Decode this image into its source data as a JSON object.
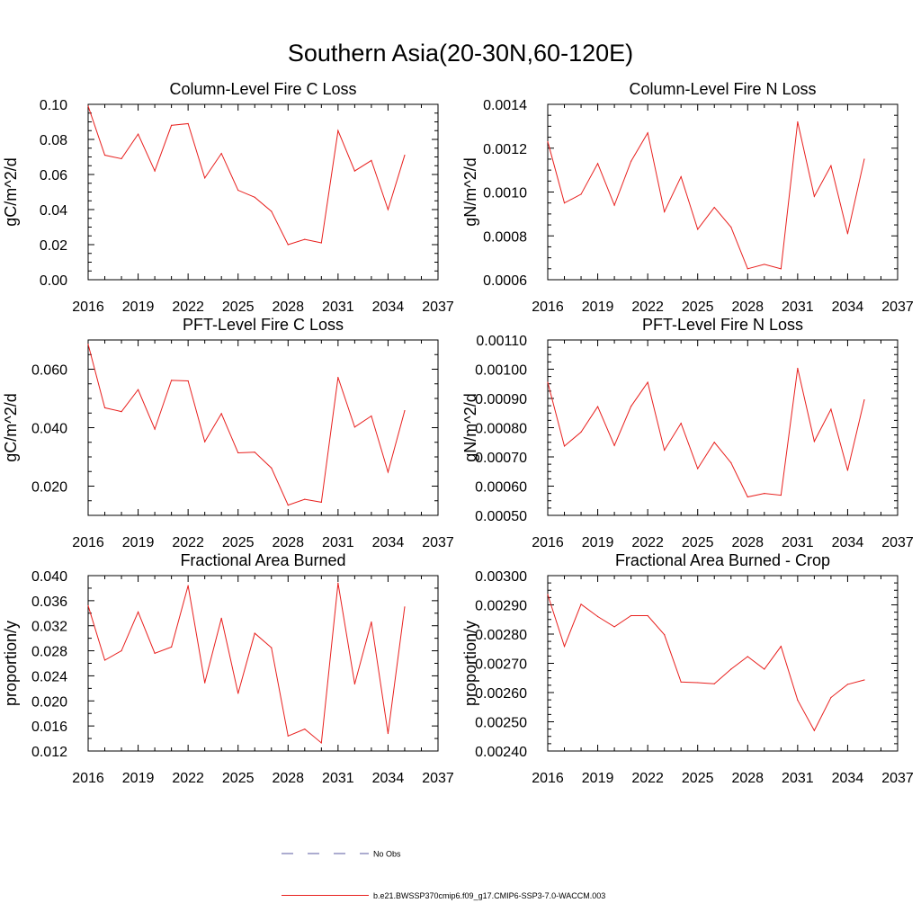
{
  "figure_title": "Southern Asia(20-30N,60-120E)",
  "legend": {
    "obs_label": "No Obs",
    "model_label": "b.e21.BWSSP370cmip6.f09_g17.CMIP6-SSP3-7.0-WACCM.003",
    "obs_color": "#5a5aa0",
    "model_color": "#e8201e"
  },
  "chart_data": [
    {
      "type": "line",
      "title": "Column-Level Fire C Loss",
      "ylabel": "gC/m^2/d",
      "xlabel": "",
      "xlim": [
        2016,
        2037
      ],
      "x_ticks": [
        "2016",
        "2019",
        "2022",
        "2025",
        "2028",
        "2031",
        "2034",
        "2037"
      ],
      "ylim": [
        0.0,
        0.1
      ],
      "y_ticks": [
        "0.00",
        "0.02",
        "0.04",
        "0.06",
        "0.08",
        "0.10"
      ],
      "series": [
        {
          "name": "b.e21.BWSSP370cmip6.f09_g17.CMIP6-SSP3-7.0-WACCM.003",
          "x": [
            2016,
            2017,
            2018,
            2019,
            2020,
            2021,
            2022,
            2023,
            2024,
            2025,
            2026,
            2027,
            2028,
            2029,
            2030,
            2031,
            2032,
            2033,
            2034,
            2035
          ],
          "values": [
            0.099,
            0.071,
            0.069,
            0.083,
            0.062,
            0.088,
            0.089,
            0.058,
            0.072,
            0.051,
            0.047,
            0.039,
            0.02,
            0.023,
            0.021,
            0.085,
            0.062,
            0.068,
            0.04,
            0.071
          ]
        }
      ]
    },
    {
      "type": "line",
      "title": "Column-Level Fire N Loss",
      "ylabel": "gN/m^2/d",
      "xlabel": "",
      "xlim": [
        2016,
        2037
      ],
      "x_ticks": [
        "2016",
        "2019",
        "2022",
        "2025",
        "2028",
        "2031",
        "2034",
        "2037"
      ],
      "ylim": [
        0.0006,
        0.0014
      ],
      "y_ticks": [
        "0.0006",
        "0.0008",
        "0.0010",
        "0.0012",
        "0.0014"
      ],
      "series": [
        {
          "name": "b.e21.BWSSP370cmip6.f09_g17.CMIP6-SSP3-7.0-WACCM.003",
          "x": [
            2016,
            2017,
            2018,
            2019,
            2020,
            2021,
            2022,
            2023,
            2024,
            2025,
            2026,
            2027,
            2028,
            2029,
            2030,
            2031,
            2032,
            2033,
            2034,
            2035
          ],
          "values": [
            0.00123,
            0.00095,
            0.00099,
            0.00113,
            0.00094,
            0.00114,
            0.00127,
            0.00091,
            0.00107,
            0.00083,
            0.00093,
            0.00084,
            0.00065,
            0.00067,
            0.00065,
            0.00132,
            0.00098,
            0.00112,
            0.00081,
            0.00115
          ]
        }
      ]
    },
    {
      "type": "line",
      "title": "PFT-Level Fire C Loss",
      "ylabel": "gC/m^2/d",
      "xlabel": "",
      "xlim": [
        2016,
        2037
      ],
      "x_ticks": [
        "2016",
        "2019",
        "2022",
        "2025",
        "2028",
        "2031",
        "2034",
        "2037"
      ],
      "ylim": [
        0.01,
        0.07
      ],
      "y_ticks": [
        "0.020",
        "0.040",
        "0.060"
      ],
      "series": [
        {
          "name": "b.e21.BWSSP370cmip6.f09_g17.CMIP6-SSP3-7.0-WACCM.003",
          "x": [
            2016,
            2017,
            2018,
            2019,
            2020,
            2021,
            2022,
            2023,
            2024,
            2025,
            2026,
            2027,
            2028,
            2029,
            2030,
            2031,
            2032,
            2033,
            2034,
            2035
          ],
          "values": [
            0.0685,
            0.0468,
            0.0455,
            0.053,
            0.0395,
            0.0562,
            0.056,
            0.0352,
            0.0448,
            0.0314,
            0.0316,
            0.0262,
            0.0135,
            0.0155,
            0.0145,
            0.0572,
            0.0402,
            0.044,
            0.0248,
            0.0458
          ]
        }
      ]
    },
    {
      "type": "line",
      "title": "PFT-Level Fire N Loss",
      "ylabel": "gN/m^2/d",
      "xlabel": "",
      "xlim": [
        2016,
        2037
      ],
      "x_ticks": [
        "2016",
        "2019",
        "2022",
        "2025",
        "2028",
        "2031",
        "2034",
        "2037"
      ],
      "ylim": [
        0.0005,
        0.0011
      ],
      "y_ticks": [
        "0.00050",
        "0.00060",
        "0.00070",
        "0.00080",
        "0.00090",
        "0.00100",
        "0.00110"
      ],
      "series": [
        {
          "name": "b.e21.BWSSP370cmip6.f09_g17.CMIP6-SSP3-7.0-WACCM.003",
          "x": [
            2016,
            2017,
            2018,
            2019,
            2020,
            2021,
            2022,
            2023,
            2024,
            2025,
            2026,
            2027,
            2028,
            2029,
            2030,
            2031,
            2032,
            2033,
            2034,
            2035
          ],
          "values": [
            0.000955,
            0.000737,
            0.000785,
            0.000872,
            0.000739,
            0.000873,
            0.000955,
            0.000723,
            0.000815,
            0.00066,
            0.00075,
            0.00068,
            0.000563,
            0.000575,
            0.000569,
            0.001003,
            0.000753,
            0.000863,
            0.000654,
            0.000895
          ]
        }
      ]
    },
    {
      "type": "line",
      "title": "Fractional Area Burned",
      "ylabel": "proportion/y",
      "xlabel": "",
      "xlim": [
        2016,
        2037
      ],
      "x_ticks": [
        "2016",
        "2019",
        "2022",
        "2025",
        "2028",
        "2031",
        "2034",
        "2037"
      ],
      "ylim": [
        0.012,
        0.04
      ],
      "y_ticks": [
        "0.012",
        "0.016",
        "0.020",
        "0.024",
        "0.028",
        "0.032",
        "0.036",
        "0.040"
      ],
      "series": [
        {
          "name": "b.e21.BWSSP370cmip6.f09_g17.CMIP6-SSP3-7.0-WACCM.003",
          "x": [
            2016,
            2017,
            2018,
            2019,
            2020,
            2021,
            2022,
            2023,
            2024,
            2025,
            2026,
            2027,
            2028,
            2029,
            2030,
            2031,
            2032,
            2033,
            2034,
            2035
          ],
          "values": [
            0.0352,
            0.0265,
            0.028,
            0.0342,
            0.0276,
            0.0286,
            0.0384,
            0.0229,
            0.0332,
            0.0212,
            0.0308,
            0.0285,
            0.0144,
            0.0155,
            0.0133,
            0.0388,
            0.0227,
            0.0326,
            0.0148,
            0.035
          ]
        }
      ]
    },
    {
      "type": "line",
      "title": "Fractional Area Burned - Crop",
      "ylabel": "proportion/y",
      "xlabel": "",
      "xlim": [
        2016,
        2037
      ],
      "x_ticks": [
        "2016",
        "2019",
        "2022",
        "2025",
        "2028",
        "2031",
        "2034",
        "2037"
      ],
      "ylim": [
        0.0024,
        0.003
      ],
      "y_ticks": [
        "0.00240",
        "0.00250",
        "0.00260",
        "0.00270",
        "0.00280",
        "0.00290",
        "0.00300"
      ],
      "series": [
        {
          "name": "b.e21.BWSSP370cmip6.f09_g17.CMIP6-SSP3-7.0-WACCM.003",
          "x": [
            2016,
            2017,
            2018,
            2019,
            2020,
            2021,
            2022,
            2023,
            2024,
            2025,
            2026,
            2027,
            2028,
            2029,
            2030,
            2031,
            2032,
            2033,
            2034,
            2035
          ],
          "values": [
            0.002935,
            0.002758,
            0.002902,
            0.00286,
            0.002825,
            0.002863,
            0.002863,
            0.002798,
            0.002636,
            0.002634,
            0.00263,
            0.00268,
            0.002723,
            0.00268,
            0.002758,
            0.002574,
            0.00247,
            0.002583,
            0.002628,
            0.002643
          ]
        }
      ]
    }
  ]
}
